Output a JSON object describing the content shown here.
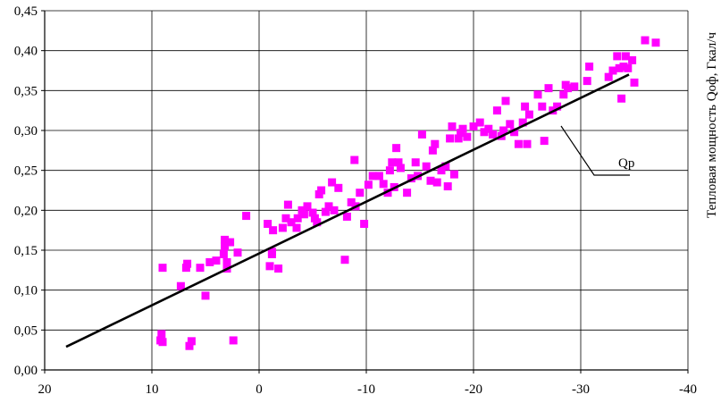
{
  "chart_data": {
    "type": "scatter",
    "title": "",
    "xlabel": "",
    "ylabel": "Тепловая мощность Qоф, Гкал/ч",
    "xlim": [
      20,
      -40
    ],
    "x_reversed": true,
    "ylim": [
      0,
      0.45
    ],
    "grid": true,
    "x_ticks": [
      "20",
      "10",
      "0",
      "-10",
      "-20",
      "-30",
      "-40"
    ],
    "y_ticks": [
      "0,00",
      "0,05",
      "0,10",
      "0,15",
      "0,20",
      "0,25",
      "0,30",
      "0,35",
      "0,40",
      "0,45"
    ],
    "annotations": [
      "Qр"
    ],
    "colors": {
      "points": "#ff00ff",
      "line": "#000000",
      "grid": "#000000"
    },
    "series": [
      {
        "type": "scatter",
        "points": [
          [
            9.2,
            0.037
          ],
          [
            9.1,
            0.045
          ],
          [
            9.0,
            0.035
          ],
          [
            9.0,
            0.128
          ],
          [
            6.5,
            0.03
          ],
          [
            6.3,
            0.036
          ],
          [
            7.3,
            0.105
          ],
          [
            6.8,
            0.128
          ],
          [
            6.7,
            0.133
          ],
          [
            5.5,
            0.128
          ],
          [
            5.0,
            0.093
          ],
          [
            4.6,
            0.135
          ],
          [
            4.0,
            0.137
          ],
          [
            3.3,
            0.145
          ],
          [
            3.2,
            0.155
          ],
          [
            3.2,
            0.163
          ],
          [
            3.0,
            0.135
          ],
          [
            3.0,
            0.127
          ],
          [
            2.7,
            0.16
          ],
          [
            2.4,
            0.037
          ],
          [
            2.0,
            0.147
          ],
          [
            1.2,
            0.193
          ],
          [
            -0.8,
            0.183
          ],
          [
            -1.0,
            0.13
          ],
          [
            -1.2,
            0.148
          ],
          [
            -1.2,
            0.145
          ],
          [
            -1.3,
            0.175
          ],
          [
            -1.8,
            0.127
          ],
          [
            -2.2,
            0.178
          ],
          [
            -2.5,
            0.19
          ],
          [
            -2.7,
            0.207
          ],
          [
            -3.0,
            0.185
          ],
          [
            -3.5,
            0.178
          ],
          [
            -3.6,
            0.19
          ],
          [
            -4.0,
            0.2
          ],
          [
            -4.2,
            0.195
          ],
          [
            -4.5,
            0.205
          ],
          [
            -5.0,
            0.197
          ],
          [
            -5.2,
            0.19
          ],
          [
            -5.4,
            0.185
          ],
          [
            -5.6,
            0.22
          ],
          [
            -5.8,
            0.225
          ],
          [
            -6.2,
            0.198
          ],
          [
            -6.5,
            0.205
          ],
          [
            -6.8,
            0.235
          ],
          [
            -7.0,
            0.2
          ],
          [
            -7.4,
            0.228
          ],
          [
            -8.0,
            0.138
          ],
          [
            -8.2,
            0.192
          ],
          [
            -8.6,
            0.21
          ],
          [
            -8.9,
            0.263
          ],
          [
            -9.0,
            0.205
          ],
          [
            -9.4,
            0.222
          ],
          [
            -9.8,
            0.183
          ],
          [
            -10.2,
            0.232
          ],
          [
            -10.6,
            0.243
          ],
          [
            -11.2,
            0.243
          ],
          [
            -11.6,
            0.233
          ],
          [
            -12.0,
            0.222
          ],
          [
            -12.2,
            0.25
          ],
          [
            -12.4,
            0.26
          ],
          [
            -12.6,
            0.229
          ],
          [
            -12.8,
            0.278
          ],
          [
            -13.0,
            0.26
          ],
          [
            -13.2,
            0.253
          ],
          [
            -13.8,
            0.222
          ],
          [
            -14.2,
            0.24
          ],
          [
            -14.6,
            0.26
          ],
          [
            -14.8,
            0.243
          ],
          [
            -15.2,
            0.295
          ],
          [
            -15.6,
            0.255
          ],
          [
            -16.0,
            0.237
          ],
          [
            -16.2,
            0.275
          ],
          [
            -16.4,
            0.283
          ],
          [
            -16.6,
            0.235
          ],
          [
            -17.0,
            0.25
          ],
          [
            -17.4,
            0.255
          ],
          [
            -17.6,
            0.23
          ],
          [
            -17.8,
            0.29
          ],
          [
            -18.0,
            0.305
          ],
          [
            -18.2,
            0.245
          ],
          [
            -18.6,
            0.29
          ],
          [
            -18.8,
            0.297
          ],
          [
            -19.0,
            0.302
          ],
          [
            -19.4,
            0.292
          ],
          [
            -20.0,
            0.305
          ],
          [
            -20.6,
            0.31
          ],
          [
            -21.0,
            0.298
          ],
          [
            -21.4,
            0.302
          ],
          [
            -21.8,
            0.295
          ],
          [
            -22.2,
            0.325
          ],
          [
            -22.6,
            0.293
          ],
          [
            -22.8,
            0.3
          ],
          [
            -23.0,
            0.337
          ],
          [
            -23.4,
            0.308
          ],
          [
            -23.8,
            0.298
          ],
          [
            -24.2,
            0.283
          ],
          [
            -24.6,
            0.31
          ],
          [
            -24.8,
            0.33
          ],
          [
            -25.0,
            0.283
          ],
          [
            -25.2,
            0.32
          ],
          [
            -26.0,
            0.345
          ],
          [
            -26.4,
            0.33
          ],
          [
            -26.6,
            0.287
          ],
          [
            -27.0,
            0.353
          ],
          [
            -27.4,
            0.325
          ],
          [
            -27.8,
            0.33
          ],
          [
            -28.4,
            0.345
          ],
          [
            -28.6,
            0.357
          ],
          [
            -28.8,
            0.353
          ],
          [
            -29.4,
            0.355
          ],
          [
            -30.8,
            0.38
          ],
          [
            -30.6,
            0.362
          ],
          [
            -32.6,
            0.367
          ],
          [
            -33.0,
            0.375
          ],
          [
            -33.4,
            0.393
          ],
          [
            -33.6,
            0.378
          ],
          [
            -33.8,
            0.34
          ],
          [
            -34.0,
            0.38
          ],
          [
            -34.2,
            0.393
          ],
          [
            -34.4,
            0.378
          ],
          [
            -34.8,
            0.388
          ],
          [
            -35.0,
            0.36
          ],
          [
            -36.0,
            0.413
          ],
          [
            -37.0,
            0.41
          ]
        ]
      },
      {
        "type": "line",
        "x": [
          18.0,
          -34.5
        ],
        "y": [
          0.029,
          0.37
        ]
      }
    ]
  }
}
